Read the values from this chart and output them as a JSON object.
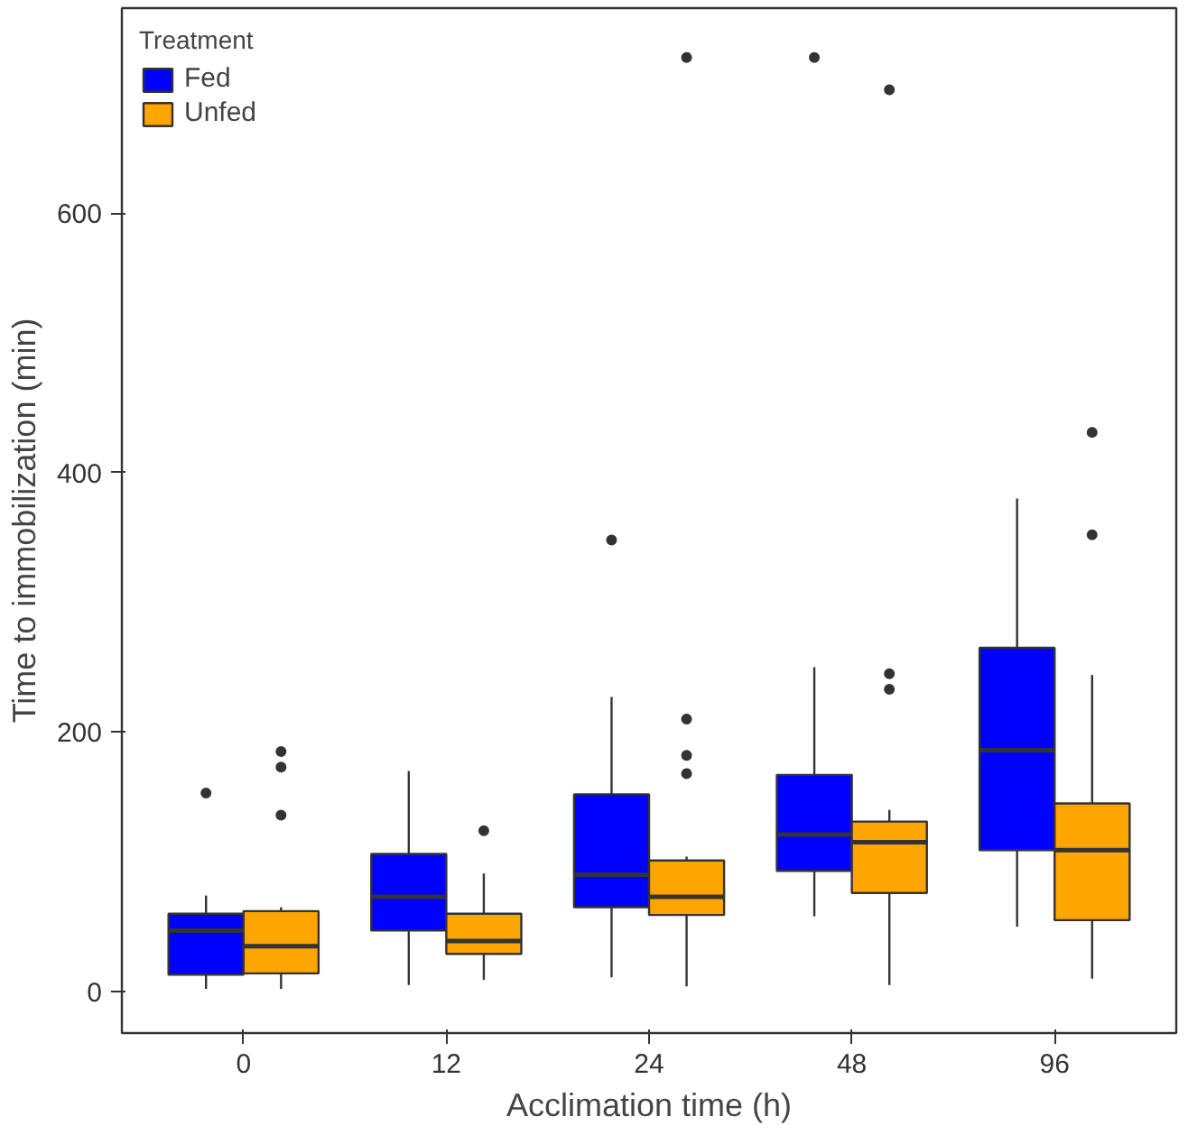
{
  "chart_data": {
    "type": "box",
    "xlabel": "Acclimation time (h)",
    "ylabel": "Time to immobilization (min)",
    "legend_title": "Treatment",
    "categories": [
      "0",
      "12",
      "24",
      "48",
      "96"
    ],
    "series": [
      {
        "name": "Fed",
        "color": "#0000ff",
        "boxes": [
          {
            "low": 2,
            "q1": 13,
            "median": 47,
            "q3": 60,
            "high": 74,
            "outliers": [
              153
            ]
          },
          {
            "low": 5,
            "q1": 47,
            "median": 73,
            "q3": 106,
            "high": 170
          },
          {
            "low": 11,
            "q1": 65,
            "median": 90,
            "q3": 152,
            "high": 227,
            "outliers": [
              348
            ]
          },
          {
            "low": 58,
            "q1": 93,
            "median": 121,
            "q3": 167,
            "high": 250,
            "outliers": [
              720
            ]
          },
          {
            "low": 50,
            "q1": 109,
            "median": 186,
            "q3": 265,
            "high": 380
          }
        ]
      },
      {
        "name": "Unfed",
        "color": "#ffa500",
        "boxes": [
          {
            "low": 2,
            "q1": 14,
            "median": 35,
            "q3": 62,
            "high": 65,
            "outliers": [
              136,
              173,
              185
            ]
          },
          {
            "low": 9,
            "q1": 29,
            "median": 39,
            "q3": 60,
            "high": 91,
            "outliers": [
              124
            ]
          },
          {
            "low": 4,
            "q1": 59,
            "median": 73,
            "q3": 101,
            "high": 104,
            "outliers": [
              168,
              182,
              210,
              720
            ]
          },
          {
            "low": 5,
            "q1": 76,
            "median": 115,
            "q3": 131,
            "high": 140,
            "outliers": [
              233,
              245,
              695
            ]
          },
          {
            "low": 10,
            "q1": 55,
            "median": 109,
            "q3": 145,
            "high": 244,
            "outliers": [
              352,
              431
            ]
          }
        ]
      }
    ],
    "ylim": [
      -32,
      758
    ],
    "yticks": [
      0,
      200,
      400,
      600
    ],
    "grid": false,
    "legend": "top left"
  }
}
